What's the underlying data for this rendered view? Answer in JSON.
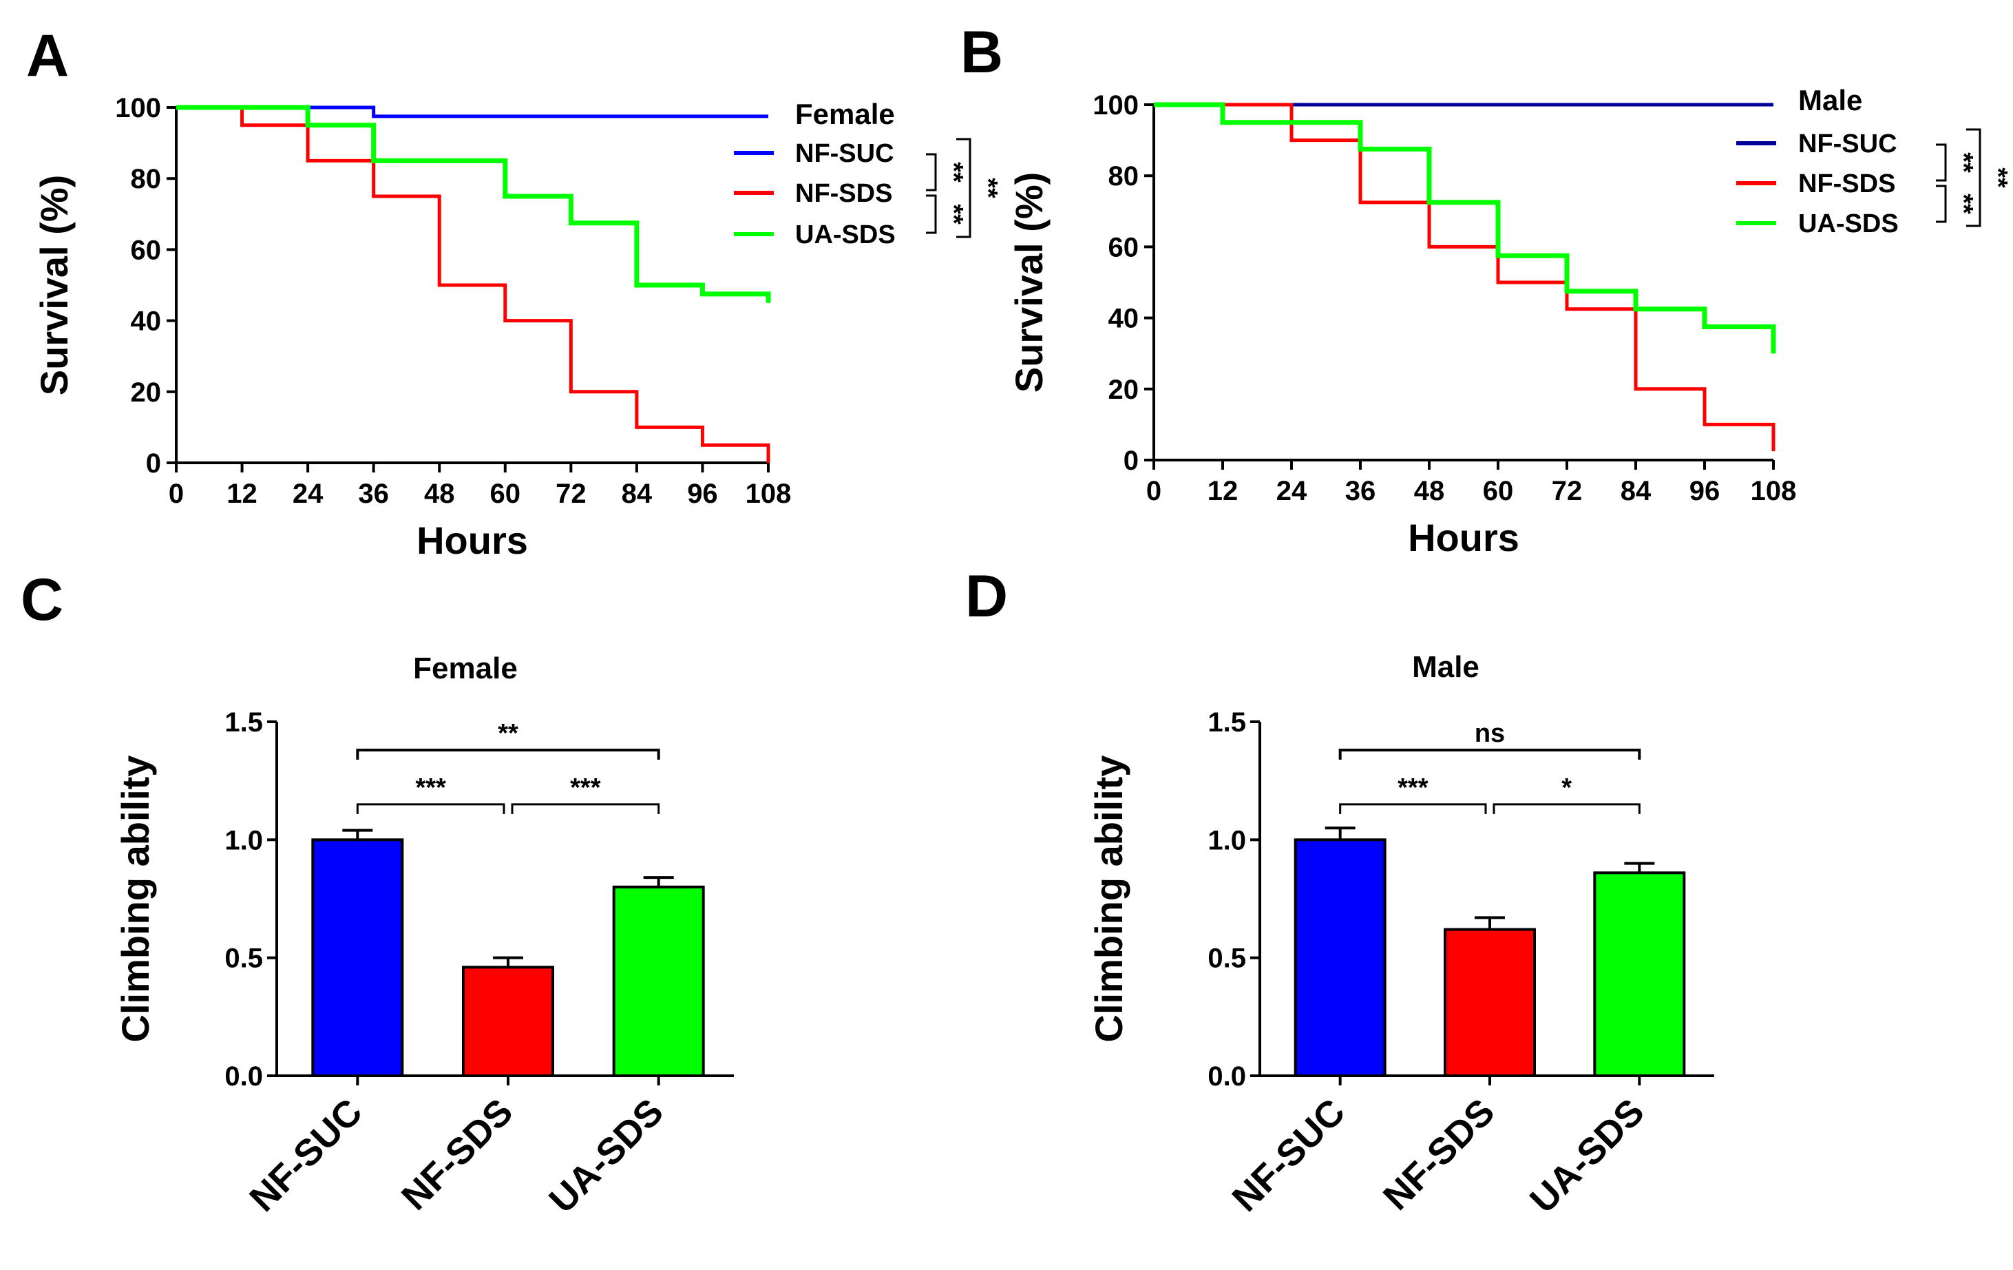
{
  "chart_data": [
    {
      "panel": "A",
      "type": "line",
      "step": true,
      "title": "Female",
      "xlabel": "Hours",
      "ylabel": "Survival (%)",
      "xlim": [
        0,
        108
      ],
      "ylim": [
        0,
        100
      ],
      "xticks": [
        0,
        12,
        24,
        36,
        48,
        60,
        72,
        84,
        96,
        108
      ],
      "yticks": [
        0,
        20,
        40,
        60,
        80,
        100
      ],
      "series": [
        {
          "name": "NF-SUC",
          "color": "#0000ff",
          "x": [
            0,
            12,
            24,
            36,
            48,
            60,
            72,
            84,
            96,
            108
          ],
          "y": [
            100,
            100,
            100,
            97.5,
            97.5,
            97.5,
            97.5,
            97.5,
            97.5,
            97.5
          ]
        },
        {
          "name": "NF-SDS",
          "color": "#ff0000",
          "x": [
            0,
            12,
            24,
            36,
            48,
            60,
            72,
            84,
            96,
            108
          ],
          "y": [
            100,
            95,
            85,
            75,
            50,
            40,
            20,
            10,
            5,
            0
          ]
        },
        {
          "name": "UA-SDS",
          "color": "#00ff00",
          "x": [
            0,
            12,
            24,
            36,
            48,
            60,
            72,
            84,
            96,
            108
          ],
          "y": [
            100,
            100,
            95,
            85,
            85,
            75,
            67.5,
            50,
            47.5,
            45
          ]
        }
      ],
      "significance": [
        {
          "between": [
            "NF-SUC",
            "NF-SDS"
          ],
          "label": "**"
        },
        {
          "between": [
            "NF-SDS",
            "UA-SDS"
          ],
          "label": "**"
        },
        {
          "between": [
            "NF-SUC",
            "UA-SDS"
          ],
          "label": "**"
        }
      ]
    },
    {
      "panel": "B",
      "type": "line",
      "step": true,
      "title": "Male",
      "xlabel": "Hours",
      "ylabel": "Survival (%)",
      "xlim": [
        0,
        108
      ],
      "ylim": [
        0,
        100
      ],
      "xticks": [
        0,
        12,
        24,
        36,
        48,
        60,
        72,
        84,
        96,
        108
      ],
      "yticks": [
        0,
        20,
        40,
        60,
        80,
        100
      ],
      "series": [
        {
          "name": "NF-SUC",
          "color": "#000099",
          "x": [
            0,
            12,
            24,
            36,
            48,
            60,
            72,
            84,
            96,
            108
          ],
          "y": [
            100,
            100,
            100,
            100,
            100,
            100,
            100,
            100,
            100,
            100
          ]
        },
        {
          "name": "NF-SDS",
          "color": "#ff0000",
          "x": [
            0,
            12,
            24,
            36,
            48,
            60,
            72,
            84,
            96,
            108
          ],
          "y": [
            100,
            100,
            90,
            72.5,
            60,
            50,
            42.5,
            20,
            10,
            2.5
          ]
        },
        {
          "name": "UA-SDS",
          "color": "#00ff00",
          "x": [
            0,
            12,
            24,
            36,
            48,
            60,
            72,
            84,
            96,
            108
          ],
          "y": [
            100,
            95,
            95,
            87.5,
            72.5,
            57.5,
            47.5,
            42.5,
            37.5,
            30
          ]
        }
      ],
      "significance": [
        {
          "between": [
            "NF-SUC",
            "NF-SDS"
          ],
          "label": "**"
        },
        {
          "between": [
            "NF-SDS",
            "UA-SDS"
          ],
          "label": "**"
        },
        {
          "between": [
            "NF-SUC",
            "UA-SDS"
          ],
          "label": "**"
        }
      ]
    },
    {
      "panel": "C",
      "type": "bar",
      "title": "Female",
      "xlabel": "",
      "ylabel": "Climbing ability",
      "ylim": [
        0,
        1.5
      ],
      "yticks": [
        0.0,
        0.5,
        1.0,
        1.5
      ],
      "ytick_labels": [
        "0.0",
        "0.5",
        "1.0",
        "1.5"
      ],
      "categories": [
        "NF-SUC",
        "NF-SDS",
        "UA-SDS"
      ],
      "values": [
        1.0,
        0.46,
        0.8
      ],
      "errors": [
        0.04,
        0.04,
        0.04
      ],
      "colors": [
        "#0000ff",
        "#ff0000",
        "#00ff00"
      ],
      "significance": [
        {
          "between": [
            "NF-SUC",
            "NF-SDS"
          ],
          "label": "***"
        },
        {
          "between": [
            "NF-SDS",
            "UA-SDS"
          ],
          "label": "***"
        },
        {
          "between": [
            "NF-SUC",
            "UA-SDS"
          ],
          "label": "**"
        }
      ]
    },
    {
      "panel": "D",
      "type": "bar",
      "title": "Male",
      "xlabel": "",
      "ylabel": "Climbing ability",
      "ylim": [
        0,
        1.5
      ],
      "yticks": [
        0.0,
        0.5,
        1.0,
        1.5
      ],
      "ytick_labels": [
        "0.0",
        "0.5",
        "1.0",
        "1.5"
      ],
      "categories": [
        "NF-SUC",
        "NF-SDS",
        "UA-SDS"
      ],
      "values": [
        1.0,
        0.62,
        0.86
      ],
      "errors": [
        0.05,
        0.05,
        0.04
      ],
      "colors": [
        "#0000ff",
        "#ff0000",
        "#00ff00"
      ],
      "significance": [
        {
          "between": [
            "NF-SUC",
            "NF-SDS"
          ],
          "label": "***"
        },
        {
          "between": [
            "NF-SDS",
            "UA-SDS"
          ],
          "label": "*"
        },
        {
          "between": [
            "NF-SUC",
            "UA-SDS"
          ],
          "label": "ns"
        }
      ]
    }
  ]
}
